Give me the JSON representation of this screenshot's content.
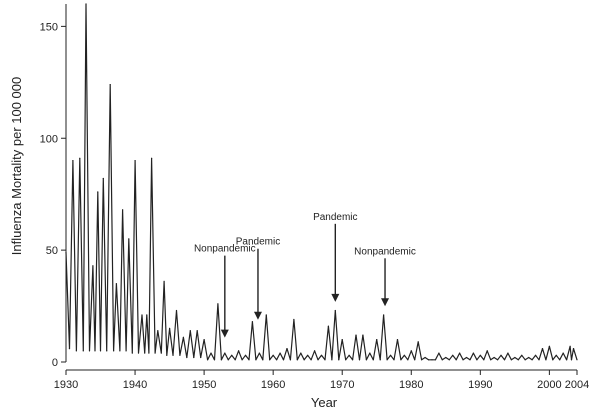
{
  "chart_data": {
    "type": "line",
    "xlabel": "Year",
    "ylabel": "Influenza Mortality per 100 000",
    "xlim": [
      1930,
      2004
    ],
    "ylim": [
      0,
      160
    ],
    "x_ticks": [
      1930,
      1940,
      1950,
      1960,
      1970,
      1980,
      1990,
      2000,
      2004
    ],
    "y_ticks": [
      0,
      50,
      100,
      150
    ],
    "x_tick_labels": [
      "1930",
      "1940",
      "1950",
      "1960",
      "1970",
      "1980",
      "1990",
      "2000",
      "2004"
    ],
    "y_tick_labels": [
      "0",
      "50",
      "100",
      "150"
    ],
    "grid": false,
    "legend": false,
    "series": [
      {
        "peaks": [
          [
            1930.0,
            49
          ],
          [
            1931.0,
            90
          ],
          [
            1932.0,
            91
          ],
          [
            1932.9,
            160
          ],
          [
            1933.9,
            43
          ],
          [
            1934.6,
            76
          ],
          [
            1935.4,
            82
          ],
          [
            1936.4,
            124
          ],
          [
            1937.3,
            35
          ],
          [
            1938.2,
            68
          ],
          [
            1939.1,
            55
          ],
          [
            1940.0,
            90
          ],
          [
            1941.0,
            21
          ],
          [
            1941.7,
            21
          ],
          [
            1942.4,
            91
          ],
          [
            1943.3,
            14
          ],
          [
            1944.2,
            36
          ],
          [
            1945.0,
            15
          ],
          [
            1946.0,
            23
          ],
          [
            1947.0,
            11
          ],
          [
            1948.0,
            14
          ],
          [
            1949.0,
            14
          ],
          [
            1950.0,
            10
          ],
          [
            1951.0,
            4
          ],
          [
            1952.0,
            26
          ],
          [
            1953.0,
            4
          ],
          [
            1954.0,
            3
          ],
          [
            1955.0,
            5
          ],
          [
            1956.0,
            3
          ],
          [
            1957.0,
            18
          ],
          [
            1958.0,
            4
          ],
          [
            1959.0,
            21
          ],
          [
            1960.0,
            3
          ],
          [
            1961.0,
            4
          ],
          [
            1962.0,
            6
          ],
          [
            1963.0,
            19
          ],
          [
            1964.0,
            4
          ],
          [
            1965.0,
            3
          ],
          [
            1966.0,
            5
          ],
          [
            1967.0,
            3
          ],
          [
            1968.0,
            16
          ],
          [
            1969.0,
            23
          ],
          [
            1970.0,
            10
          ],
          [
            1971.0,
            3
          ],
          [
            1972.0,
            12
          ],
          [
            1973.0,
            12
          ],
          [
            1974.0,
            4
          ],
          [
            1975.0,
            10
          ],
          [
            1976.0,
            21
          ],
          [
            1977.0,
            3
          ],
          [
            1978.0,
            10
          ],
          [
            1979.0,
            3
          ],
          [
            1980.0,
            5
          ],
          [
            1981.0,
            9
          ],
          [
            1982.0,
            2
          ],
          [
            1983.0,
            1
          ],
          [
            1984.0,
            4
          ],
          [
            1985.0,
            2
          ],
          [
            1986.0,
            3
          ],
          [
            1987.0,
            4
          ],
          [
            1988.0,
            2
          ],
          [
            1989.0,
            4
          ],
          [
            1990.0,
            3
          ],
          [
            1991.0,
            5
          ],
          [
            1992.0,
            2
          ],
          [
            1993.0,
            3
          ],
          [
            1994.0,
            4
          ],
          [
            1995.0,
            2
          ],
          [
            1996.0,
            3
          ],
          [
            1997.0,
            2
          ],
          [
            1998.0,
            3
          ],
          [
            1999.0,
            6
          ],
          [
            2000.0,
            7
          ],
          [
            2001.0,
            3
          ],
          [
            2002.0,
            4
          ],
          [
            2003.0,
            7
          ],
          [
            2003.5,
            6
          ]
        ],
        "troughs": [
          [
            1930.5,
            6
          ],
          [
            1931.5,
            5
          ],
          [
            1932.5,
            5
          ],
          [
            1933.4,
            5
          ],
          [
            1934.2,
            5
          ],
          [
            1935.0,
            5
          ],
          [
            1935.9,
            5
          ],
          [
            1936.9,
            5
          ],
          [
            1937.8,
            5
          ],
          [
            1938.7,
            5
          ],
          [
            1939.6,
            4
          ],
          [
            1940.5,
            4
          ],
          [
            1941.4,
            4
          ],
          [
            1942.0,
            4
          ],
          [
            1942.9,
            4
          ],
          [
            1943.8,
            4
          ],
          [
            1944.6,
            3
          ],
          [
            1945.5,
            3
          ],
          [
            1946.5,
            3
          ],
          [
            1947.5,
            2
          ],
          [
            1948.5,
            2
          ],
          [
            1949.5,
            2
          ],
          [
            1950.5,
            1
          ],
          [
            1951.5,
            1
          ],
          [
            1952.5,
            1
          ],
          [
            1953.5,
            1
          ],
          [
            1954.5,
            1
          ],
          [
            1955.5,
            1
          ],
          [
            1956.5,
            1
          ],
          [
            1957.5,
            1
          ],
          [
            1958.5,
            1
          ],
          [
            1959.5,
            1
          ],
          [
            1960.5,
            1
          ],
          [
            1961.5,
            1
          ],
          [
            1962.5,
            1
          ],
          [
            1963.5,
            1
          ],
          [
            1964.5,
            1
          ],
          [
            1965.5,
            1
          ],
          [
            1966.5,
            1
          ],
          [
            1967.5,
            1
          ],
          [
            1968.5,
            1
          ],
          [
            1969.5,
            1
          ],
          [
            1970.5,
            1
          ],
          [
            1971.5,
            1
          ],
          [
            1972.5,
            1
          ],
          [
            1973.5,
            1
          ],
          [
            1974.5,
            1
          ],
          [
            1975.5,
            1
          ],
          [
            1976.5,
            1
          ],
          [
            1977.5,
            1
          ],
          [
            1978.5,
            1
          ],
          [
            1979.5,
            1
          ],
          [
            1980.5,
            1
          ],
          [
            1981.5,
            1
          ],
          [
            1982.5,
            1
          ],
          [
            1983.5,
            1
          ],
          [
            1984.5,
            1
          ],
          [
            1985.5,
            1
          ],
          [
            1986.5,
            1
          ],
          [
            1987.5,
            1
          ],
          [
            1988.5,
            1
          ],
          [
            1989.5,
            1
          ],
          [
            1990.5,
            1
          ],
          [
            1991.5,
            1
          ],
          [
            1992.5,
            1
          ],
          [
            1993.5,
            1
          ],
          [
            1994.5,
            1
          ],
          [
            1995.5,
            1
          ],
          [
            1996.5,
            1
          ],
          [
            1997.5,
            1
          ],
          [
            1998.5,
            1
          ],
          [
            1999.5,
            1
          ],
          [
            2000.5,
            1
          ],
          [
            2001.5,
            1
          ],
          [
            2002.5,
            1
          ],
          [
            2003.2,
            1
          ],
          [
            2004.0,
            1
          ]
        ]
      }
    ],
    "annotations": [
      {
        "text": "Nonpandemic",
        "x": 1953,
        "y": 10
      },
      {
        "text": "Pandemic",
        "x": 1957.8,
        "y": 18
      },
      {
        "text": "Pandemic",
        "x": 1969,
        "y": 26
      },
      {
        "text": "Nonpandemic",
        "x": 1976.2,
        "y": 24
      }
    ]
  }
}
